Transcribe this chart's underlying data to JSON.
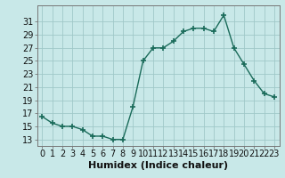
{
  "x": [
    0,
    1,
    2,
    3,
    4,
    5,
    6,
    7,
    8,
    9,
    10,
    11,
    12,
    13,
    14,
    15,
    16,
    17,
    18,
    19,
    20,
    21,
    22,
    23
  ],
  "y": [
    16.5,
    15.5,
    15.0,
    15.0,
    14.5,
    13.5,
    13.5,
    13.0,
    13.0,
    18.0,
    25.0,
    27.0,
    27.0,
    28.0,
    29.5,
    30.0,
    30.0,
    29.5,
    32.0,
    27.0,
    24.5,
    22.0,
    20.0,
    19.5
  ],
  "line_color": "#1a6b5a",
  "marker": "+",
  "marker_size": 4,
  "marker_linewidth": 1.2,
  "bg_color": "#c8e8e8",
  "grid_color": "#a0c8c8",
  "xlabel": "Humidex (Indice chaleur)",
  "xlabel_fontsize": 8,
  "ylabel_ticks": [
    13,
    15,
    17,
    19,
    21,
    23,
    25,
    27,
    29,
    31
  ],
  "xtick_labels": [
    "0",
    "1",
    "2",
    "3",
    "4",
    "5",
    "6",
    "7",
    "8",
    "9",
    "10",
    "11",
    "12",
    "13",
    "14",
    "15",
    "16",
    "17",
    "18",
    "19",
    "20",
    "21",
    "22",
    "23"
  ],
  "ylim": [
    12.0,
    33.5
  ],
  "xlim": [
    -0.5,
    23.5
  ],
  "tick_fontsize": 7,
  "line_width": 1.0
}
